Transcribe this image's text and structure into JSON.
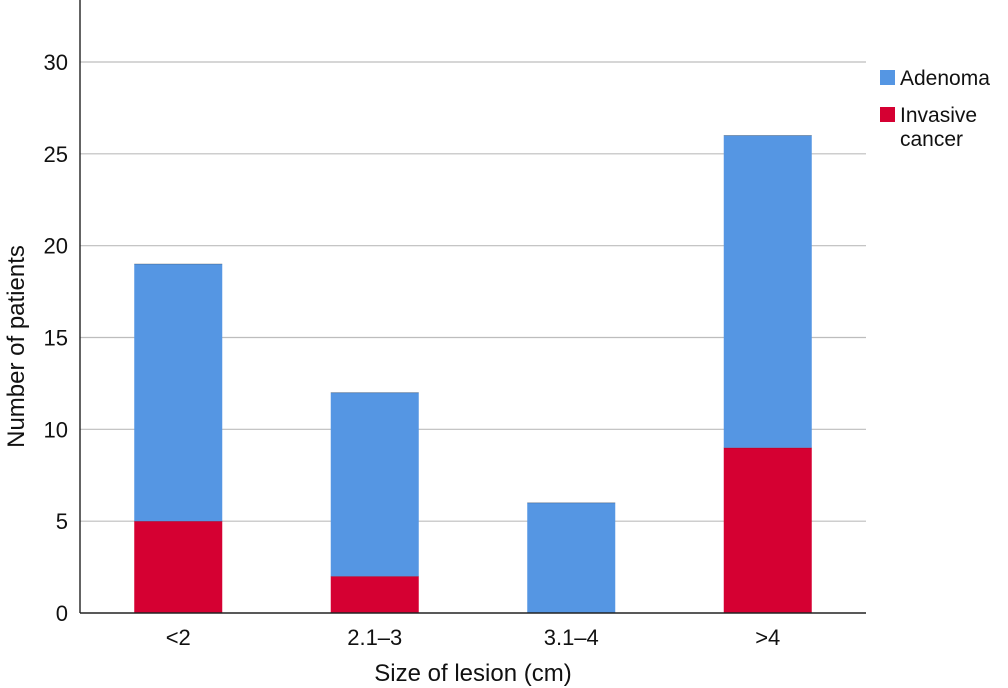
{
  "chart_data": {
    "type": "bar",
    "stacked": true,
    "categories": [
      "<2",
      "2.1–3",
      "3.1–4",
      ">4"
    ],
    "series": [
      {
        "name": "Invasive cancer",
        "name_lines": [
          "Invasive",
          "cancer"
        ],
        "color": "#d50032",
        "values": [
          5,
          2,
          0,
          9
        ]
      },
      {
        "name": "Adenoma",
        "name_lines": [
          "Adenoma"
        ],
        "color": "#5596e3",
        "values": [
          14,
          10,
          6,
          17
        ]
      }
    ],
    "totals": [
      19,
      12,
      6,
      26
    ],
    "title": "",
    "xlabel": "Size of lesion (cm)",
    "ylabel": "Number of patients",
    "ylim": [
      0,
      30
    ],
    "yticks": [
      0,
      5,
      10,
      15,
      20,
      25,
      30
    ],
    "grid": true,
    "legend_position": "right",
    "legend_order": [
      "Adenoma",
      "Invasive cancer"
    ]
  }
}
